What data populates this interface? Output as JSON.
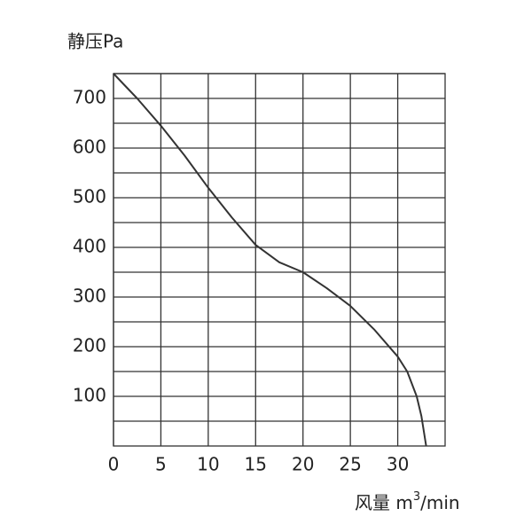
{
  "chart_data": {
    "type": "line",
    "y_label": "静压Pa",
    "x_label": [
      "风量 m",
      "3",
      "/min"
    ],
    "x": [
      0,
      2.5,
      5,
      7.5,
      10,
      12.5,
      15,
      17.5,
      20,
      22.5,
      25,
      27.5,
      30,
      31,
      32,
      32.5,
      33
    ],
    "series": [
      {
        "color": "#333333",
        "values": [
          750,
          700,
          645,
          585,
          520,
          460,
          405,
          370,
          350,
          318,
          282,
          235,
          180,
          150,
          100,
          60,
          0
        ]
      }
    ],
    "xlim": [
      0,
      35
    ],
    "xticks": [
      0,
      5,
      10,
      15,
      20,
      25,
      30
    ],
    "ylim": [
      0,
      750
    ],
    "yticks": [
      100,
      200,
      300,
      400,
      500,
      600,
      700
    ],
    "ygrid": [
      50,
      100,
      150,
      200,
      250,
      300,
      350,
      400,
      450,
      500,
      550,
      600,
      650,
      700,
      750
    ],
    "grid": true
  }
}
